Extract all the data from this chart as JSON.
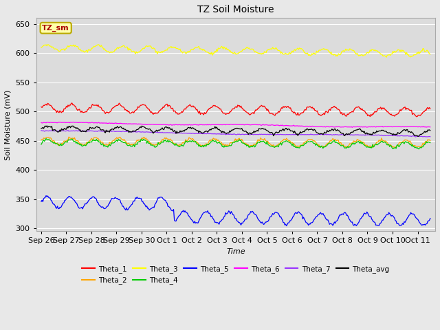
{
  "title": "TZ Soil Moisture",
  "xlabel": "Time",
  "ylabel": "Soil Moisture (mV)",
  "ylim": [
    295,
    660
  ],
  "yticks": [
    300,
    350,
    400,
    450,
    500,
    550,
    600,
    650
  ],
  "n_points": 480,
  "figure_bg": "#e8e8e8",
  "plot_bg": "#dcdcdc",
  "series": {
    "Theta_1": {
      "color": "#ff0000",
      "base": 506,
      "amplitude": 7,
      "trend": -0.45,
      "freq": 1.05
    },
    "Theta_2": {
      "color": "#ffa500",
      "base": 450,
      "amplitude": 6,
      "trend": -0.35,
      "freq": 1.05
    },
    "Theta_3": {
      "color": "#ffff00",
      "base": 609,
      "amplitude": 5,
      "trend": -0.65,
      "freq": 1.0
    },
    "Theta_4": {
      "color": "#00cc00",
      "base": 447,
      "amplitude": 5,
      "trend": -0.3,
      "freq": 1.05
    },
    "Theta_5": {
      "color": "#0000ff",
      "base": 345,
      "amplitude": 10,
      "trend": -0.5,
      "freq": 1.1,
      "step_day": 5.3,
      "step_val": -23
    },
    "Theta_6": {
      "color": "#ff00ff",
      "base": 481,
      "amplitude": 1,
      "trend": -0.55,
      "freq": 0.15
    },
    "Theta_7": {
      "color": "#9933ff",
      "base": 467,
      "amplitude": 1,
      "trend": -0.65,
      "freq": 0.1
    },
    "Theta_avg": {
      "color": "#000000",
      "base": 471,
      "amplitude": 4,
      "trend": -0.5,
      "freq": 1.05
    }
  },
  "x_tick_labels": [
    "Sep 26",
    "Sep 27",
    "Sep 28",
    "Sep 29",
    "Sep 30",
    "Oct 1",
    "Oct 2",
    "Oct 3",
    "Oct 4",
    "Oct 5",
    "Oct 6",
    "Oct 7",
    "Oct 8",
    "Oct 9",
    "Oct 10",
    "Oct 11"
  ],
  "legend_label": "TZ_sm",
  "legend_text_color": "#aa0000",
  "legend_box_facecolor": "#ffffaa",
  "legend_box_edgecolor": "#bbaa00"
}
